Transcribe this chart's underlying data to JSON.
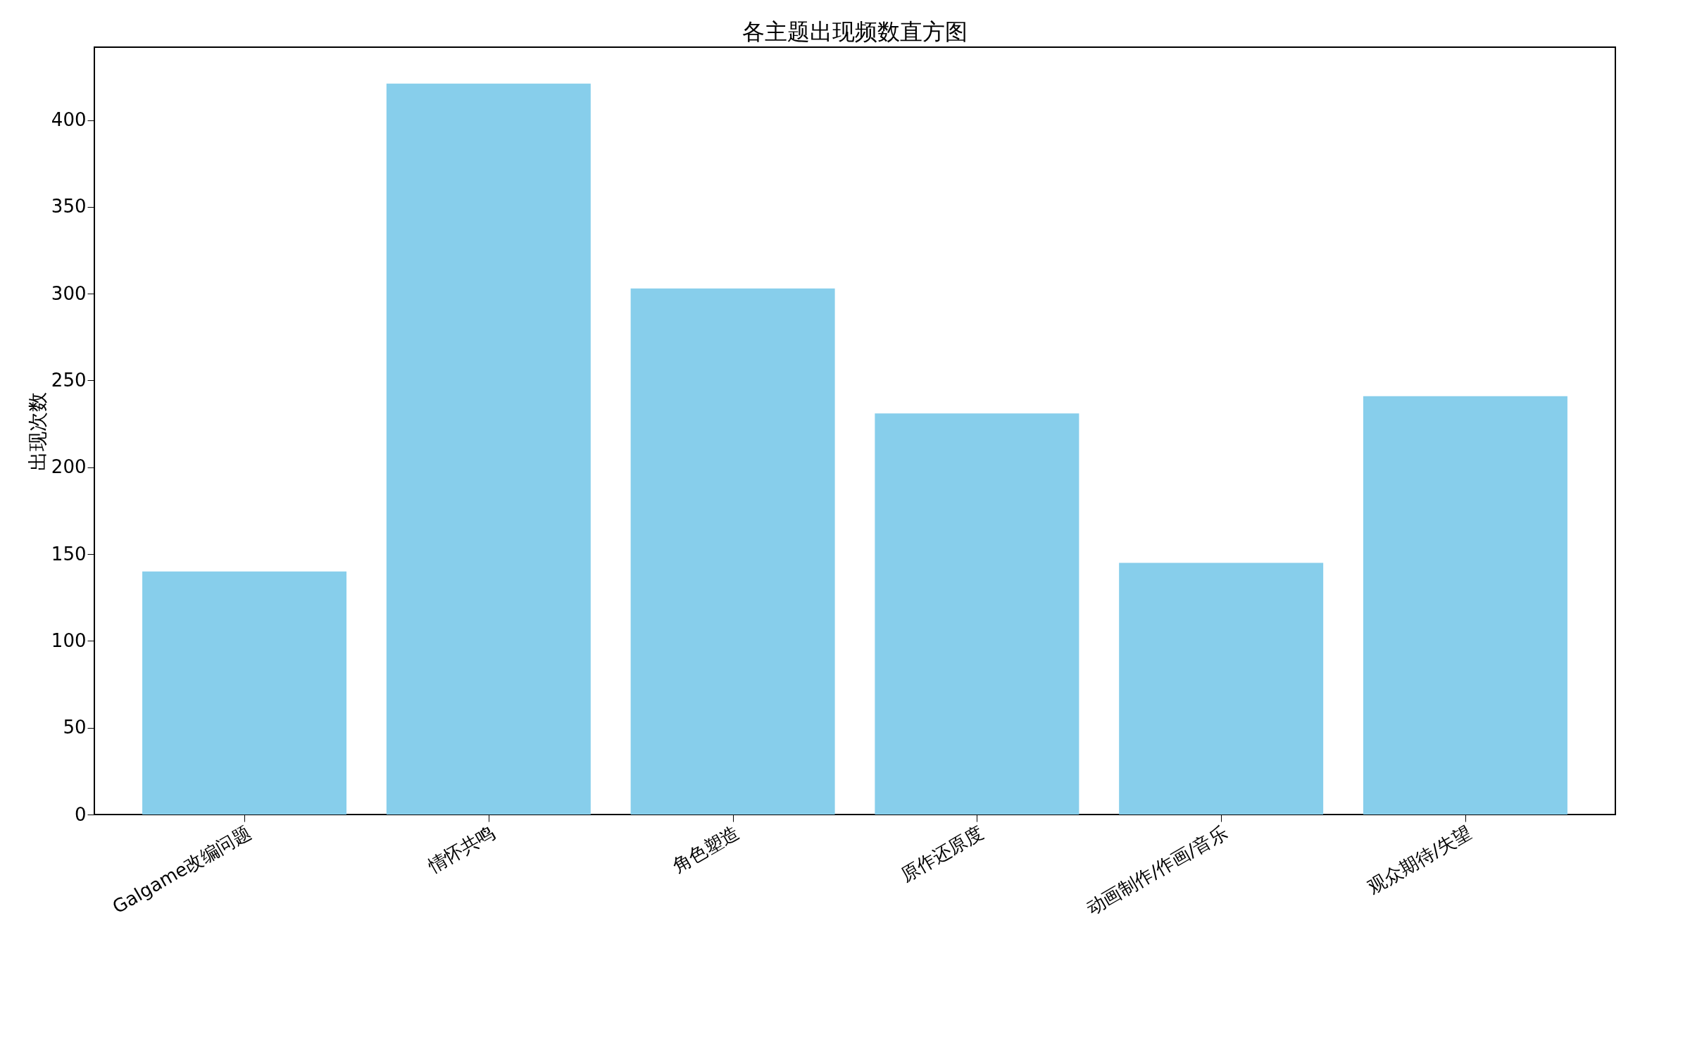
{
  "chart_data": {
    "type": "bar",
    "title": "各主题出现频数直方图",
    "ylabel": "出现次数",
    "categories": [
      "Galgame改编问题",
      "情怀共鸣",
      "角色塑造",
      "原作还原度",
      "动画制作/作画/音乐",
      "观众期待/失望"
    ],
    "values": [
      140,
      421,
      303,
      231,
      145,
      241
    ],
    "color": "#87ceeb",
    "ylim": [
      0,
      442
    ],
    "yticks": [
      0,
      50,
      100,
      150,
      200,
      250,
      300,
      350,
      400
    ],
    "grid": false
  }
}
